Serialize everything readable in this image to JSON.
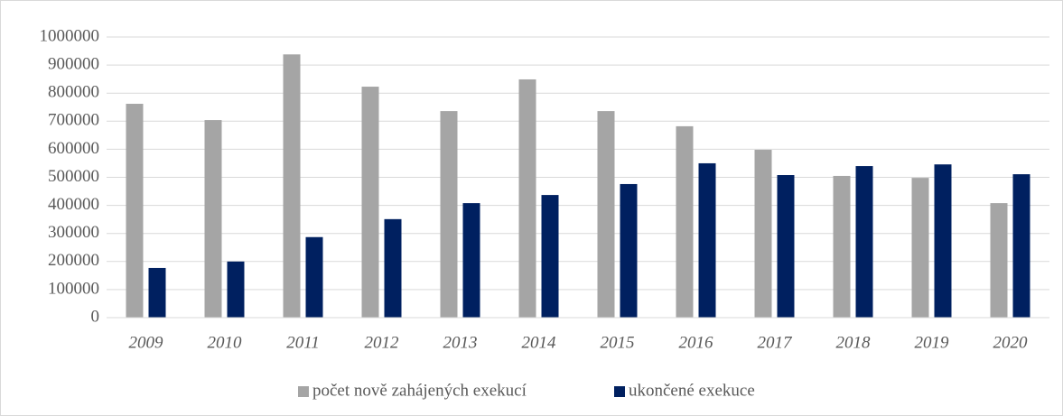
{
  "chart_data": {
    "type": "bar",
    "categories": [
      "2009",
      "2010",
      "2011",
      "2012",
      "2013",
      "2014",
      "2015",
      "2016",
      "2017",
      "2018",
      "2019",
      "2020"
    ],
    "series": [
      {
        "name": "počet nově zahájených exekucí",
        "color": "#a5a5a5",
        "values": [
          762000,
          704000,
          938000,
          823000,
          736000,
          849000,
          736000,
          682000,
          598000,
          505000,
          498000,
          408000
        ]
      },
      {
        "name": "ukončené exekuce",
        "color": "#002060",
        "values": [
          177000,
          200000,
          287000,
          351000,
          408000,
          437000,
          476000,
          550000,
          508000,
          540000,
          546000,
          511000
        ]
      }
    ],
    "ylim": [
      0,
      1000000
    ],
    "yticks": [
      0,
      100000,
      200000,
      300000,
      400000,
      500000,
      600000,
      700000,
      800000,
      900000,
      1000000
    ],
    "grid": true,
    "legend": "bottom"
  }
}
